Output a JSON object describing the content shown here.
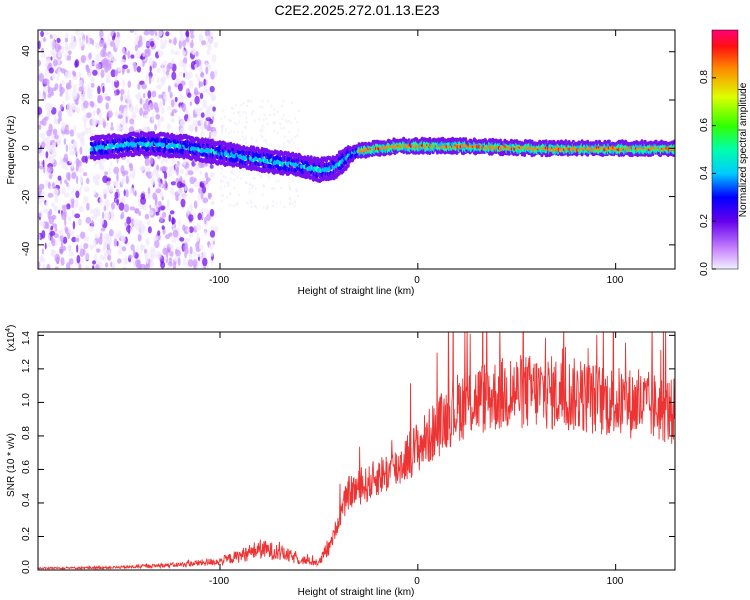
{
  "title": "C2E2.2025.272.01.13.E23",
  "chart_data": [
    {
      "type": "heatmap",
      "name": "spectrogram",
      "xlabel": "Height of straight line (km)",
      "ylabel": "Frequency (Hz)",
      "xlim": [
        -192,
        130
      ],
      "ylim": [
        -50,
        49
      ],
      "xticks": [
        -100,
        0,
        100
      ],
      "xtick_labels": [
        "-100",
        "0",
        "100"
      ],
      "yticks": [
        -40,
        -20,
        0,
        20,
        40
      ],
      "ytick_labels": [
        "-40",
        "-20",
        "0",
        "20",
        "40"
      ],
      "ridge": {
        "x": [
          -165,
          -140,
          -120,
          -100,
          -85,
          -70,
          -60,
          -50,
          -42,
          -35,
          -30,
          -20,
          -10,
          0,
          20,
          40,
          60,
          80,
          100,
          130
        ],
        "y": [
          0,
          2,
          1,
          -2,
          -4,
          -6,
          -7,
          -9,
          -8,
          -3,
          -1,
          0,
          1,
          1,
          1,
          0.5,
          0,
          0,
          0,
          0
        ]
      },
      "colorbar": {
        "label": "Normalized spectral amplitude",
        "range": [
          0,
          1
        ],
        "ticks": [
          0.0,
          0.2,
          0.4,
          0.6,
          0.8
        ],
        "tick_labels": [
          "0.0",
          "0.2",
          "0.4",
          "0.6",
          "0.8"
        ]
      }
    },
    {
      "type": "line",
      "name": "snr",
      "xlabel": "Height of straight line (km)",
      "ylabel": "SNR (10 * v/v)",
      "multiplier": "(x10",
      "multiplier_exp": "4",
      "multiplier_close": ")",
      "xlim": [
        -192,
        130
      ],
      "ylim": [
        0,
        1.42
      ],
      "xticks": [
        -100,
        0,
        100
      ],
      "xtick_labels": [
        "-100",
        "0",
        "100"
      ],
      "yticks": [
        0.0,
        0.2,
        0.4,
        0.6,
        0.8,
        1.0,
        1.2,
        1.4
      ],
      "ytick_labels": [
        "0.0",
        "0.2",
        "0.4",
        "0.6",
        "0.8",
        "1.0",
        "1.2",
        "1.4"
      ],
      "color": "#ee3333",
      "envelope": {
        "x": [
          -192,
          -150,
          -120,
          -100,
          -90,
          -80,
          -70,
          -60,
          -50,
          -44,
          -40,
          -35,
          -30,
          -25,
          -20,
          -15,
          -10,
          -5,
          0,
          5,
          10,
          15,
          20,
          30,
          40,
          50,
          60,
          70,
          80,
          90,
          100,
          110,
          120,
          130
        ],
        "y": [
          0.01,
          0.015,
          0.03,
          0.05,
          0.08,
          0.12,
          0.1,
          0.06,
          0.04,
          0.15,
          0.3,
          0.45,
          0.48,
          0.5,
          0.55,
          0.57,
          0.6,
          0.67,
          0.72,
          0.77,
          0.83,
          0.9,
          0.95,
          1.0,
          1.02,
          1.04,
          1.04,
          1.03,
          1.02,
          1.0,
          0.98,
          0.97,
          0.95,
          0.92
        ]
      }
    }
  ]
}
